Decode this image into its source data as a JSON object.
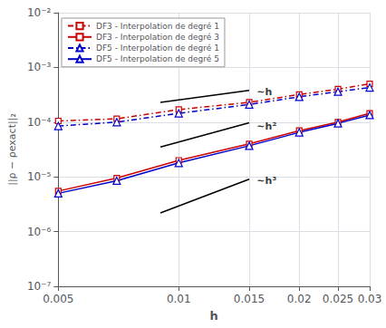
{
  "chart_data": {
    "type": "line",
    "log": true,
    "grid": true,
    "legend": "upper left",
    "xlabel": "h",
    "ylabel": "||ρ − ρexact||₂",
    "x": [
      0.005,
      0.007,
      0.01,
      0.015,
      0.02,
      0.025,
      0.03
    ],
    "xlim": [
      0.005,
      0.03
    ],
    "ylim": [
      1e-07,
      0.01
    ],
    "xticks": [
      0.005,
      0.01,
      0.015,
      0.02,
      0.025,
      0.03
    ],
    "yticks": [
      {
        "value": 1e-07,
        "label": "10⁻⁷"
      },
      {
        "value": 1e-06,
        "label": "10⁻⁶"
      },
      {
        "value": 1e-05,
        "label": "10⁻⁵"
      },
      {
        "value": 0.0001,
        "label": "10⁻⁴"
      },
      {
        "value": 0.001,
        "label": "10⁻³"
      },
      {
        "value": 0.01,
        "label": "10⁻²"
      }
    ],
    "series": [
      {
        "name": "DF3 - Interpolation de degré 1",
        "color": "#cc0000",
        "marker": "square",
        "line_style": "dashdot",
        "values": [
          0.000105,
          0.000115,
          0.00017,
          0.00023,
          0.00032,
          0.0004,
          0.0005
        ]
      },
      {
        "name": "DF3 - Interpolation de degré 3",
        "color": "#cc0000",
        "marker": "square",
        "line_style": "solid",
        "values": [
          5.5e-06,
          9.5e-06,
          2e-05,
          4e-05,
          7e-05,
          0.0001,
          0.000145
        ]
      },
      {
        "name": "DF5 - Interpolation de degré 1",
        "color": "#0000cc",
        "marker": "triangle",
        "line_style": "dashdot",
        "values": [
          8.5e-05,
          0.0001,
          0.000145,
          0.00021,
          0.00029,
          0.00036,
          0.00043
        ]
      },
      {
        "name": "DF5 - Interpolation de degré 5",
        "color": "#0000cc",
        "marker": "triangle",
        "line_style": "solid",
        "values": [
          5e-06,
          8.5e-06,
          1.8e-05,
          3.7e-05,
          6.5e-05,
          9.5e-05,
          0.000135
        ]
      },
      {
        "x": [
          0.009,
          0.015
        ],
        "values": [
          0.00023,
          0.00038
        ],
        "color": "black",
        "marker": "none",
        "line_style": "solid"
      },
      {
        "x": [
          0.009,
          0.015
        ],
        "values": [
          3.5e-05,
          9.7e-05
        ],
        "color": "black",
        "marker": "none",
        "line_style": "solid"
      },
      {
        "x": [
          0.009,
          0.015
        ],
        "values": [
          2.2e-06,
          9.1e-06
        ],
        "color": "black",
        "marker": "none",
        "line_style": "solid"
      }
    ],
    "annotations": [
      {
        "text": "∼h",
        "x": 0.0155,
        "y": 0.00035
      },
      {
        "text": "∼h²",
        "x": 0.0155,
        "y": 8.5e-05
      },
      {
        "text": "∼h³",
        "x": 0.0155,
        "y": 8.5e-06
      }
    ]
  }
}
